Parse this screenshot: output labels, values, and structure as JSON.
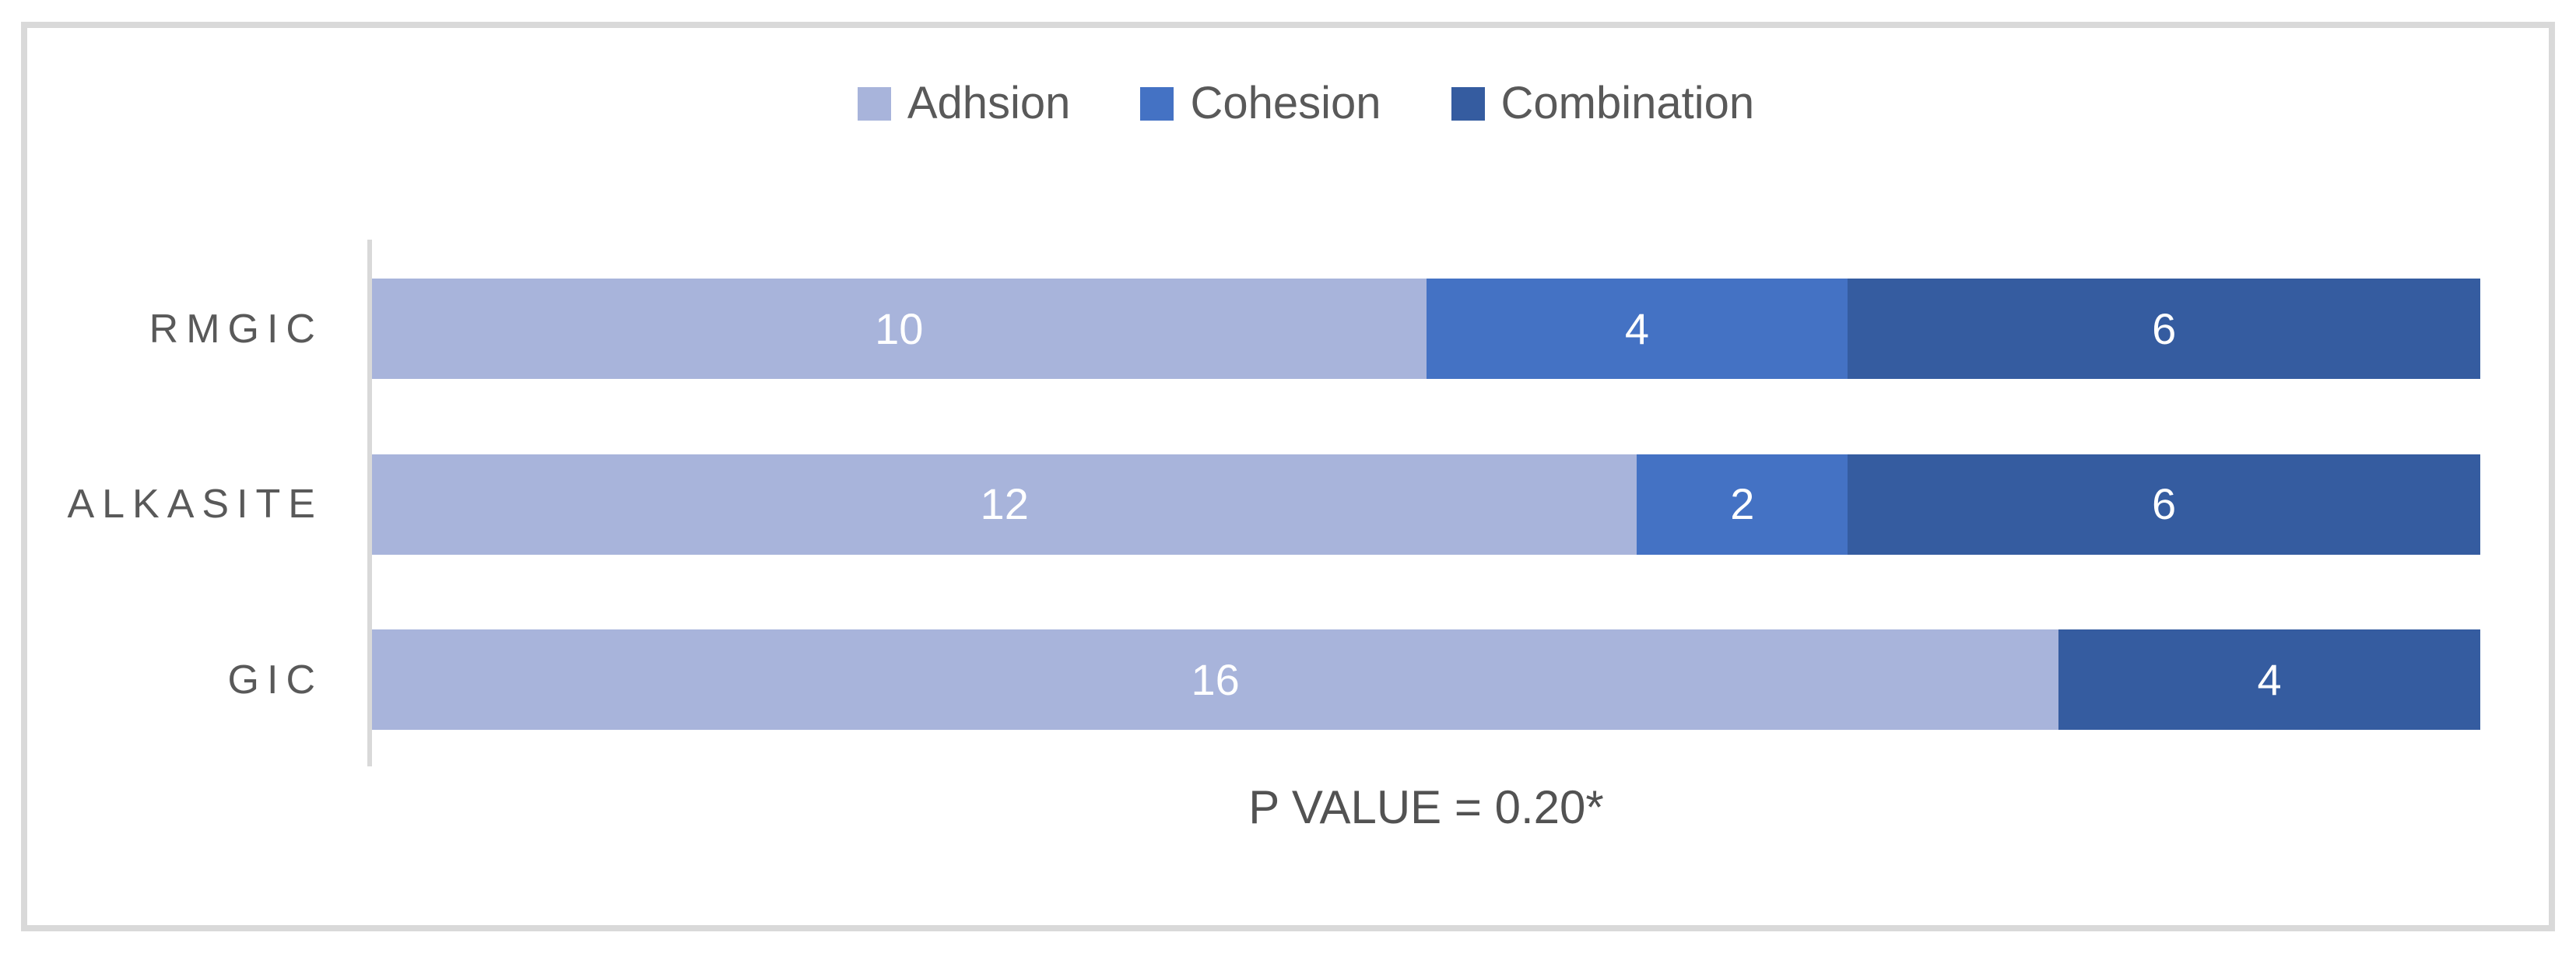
{
  "chart_data": {
    "type": "bar",
    "orientation": "horizontal",
    "stacked": true,
    "title": "",
    "categories": [
      "RMGIC",
      "ALKASITE",
      "GIC"
    ],
    "series": [
      {
        "name": "Adhsion",
        "color": "#A8B4DB",
        "values": [
          10,
          12,
          16
        ]
      },
      {
        "name": "Cohesion",
        "color": "#4472C4",
        "values": [
          4,
          2,
          0
        ]
      },
      {
        "name": "Combination",
        "color": "#355CA0",
        "values": [
          6,
          6,
          4
        ]
      }
    ],
    "x_total": 20,
    "xlabel": "P VALUE = 0.20*",
    "legend_position": "top",
    "legend_entries": [
      "Adhsion",
      "Cohesion",
      "Combination"
    ],
    "data_labels_color": "#FFFFFF",
    "axis_line_color": "#D9D9D9",
    "frame_color": "#D9D9D9",
    "text_color": "#595959",
    "grid": false
  }
}
